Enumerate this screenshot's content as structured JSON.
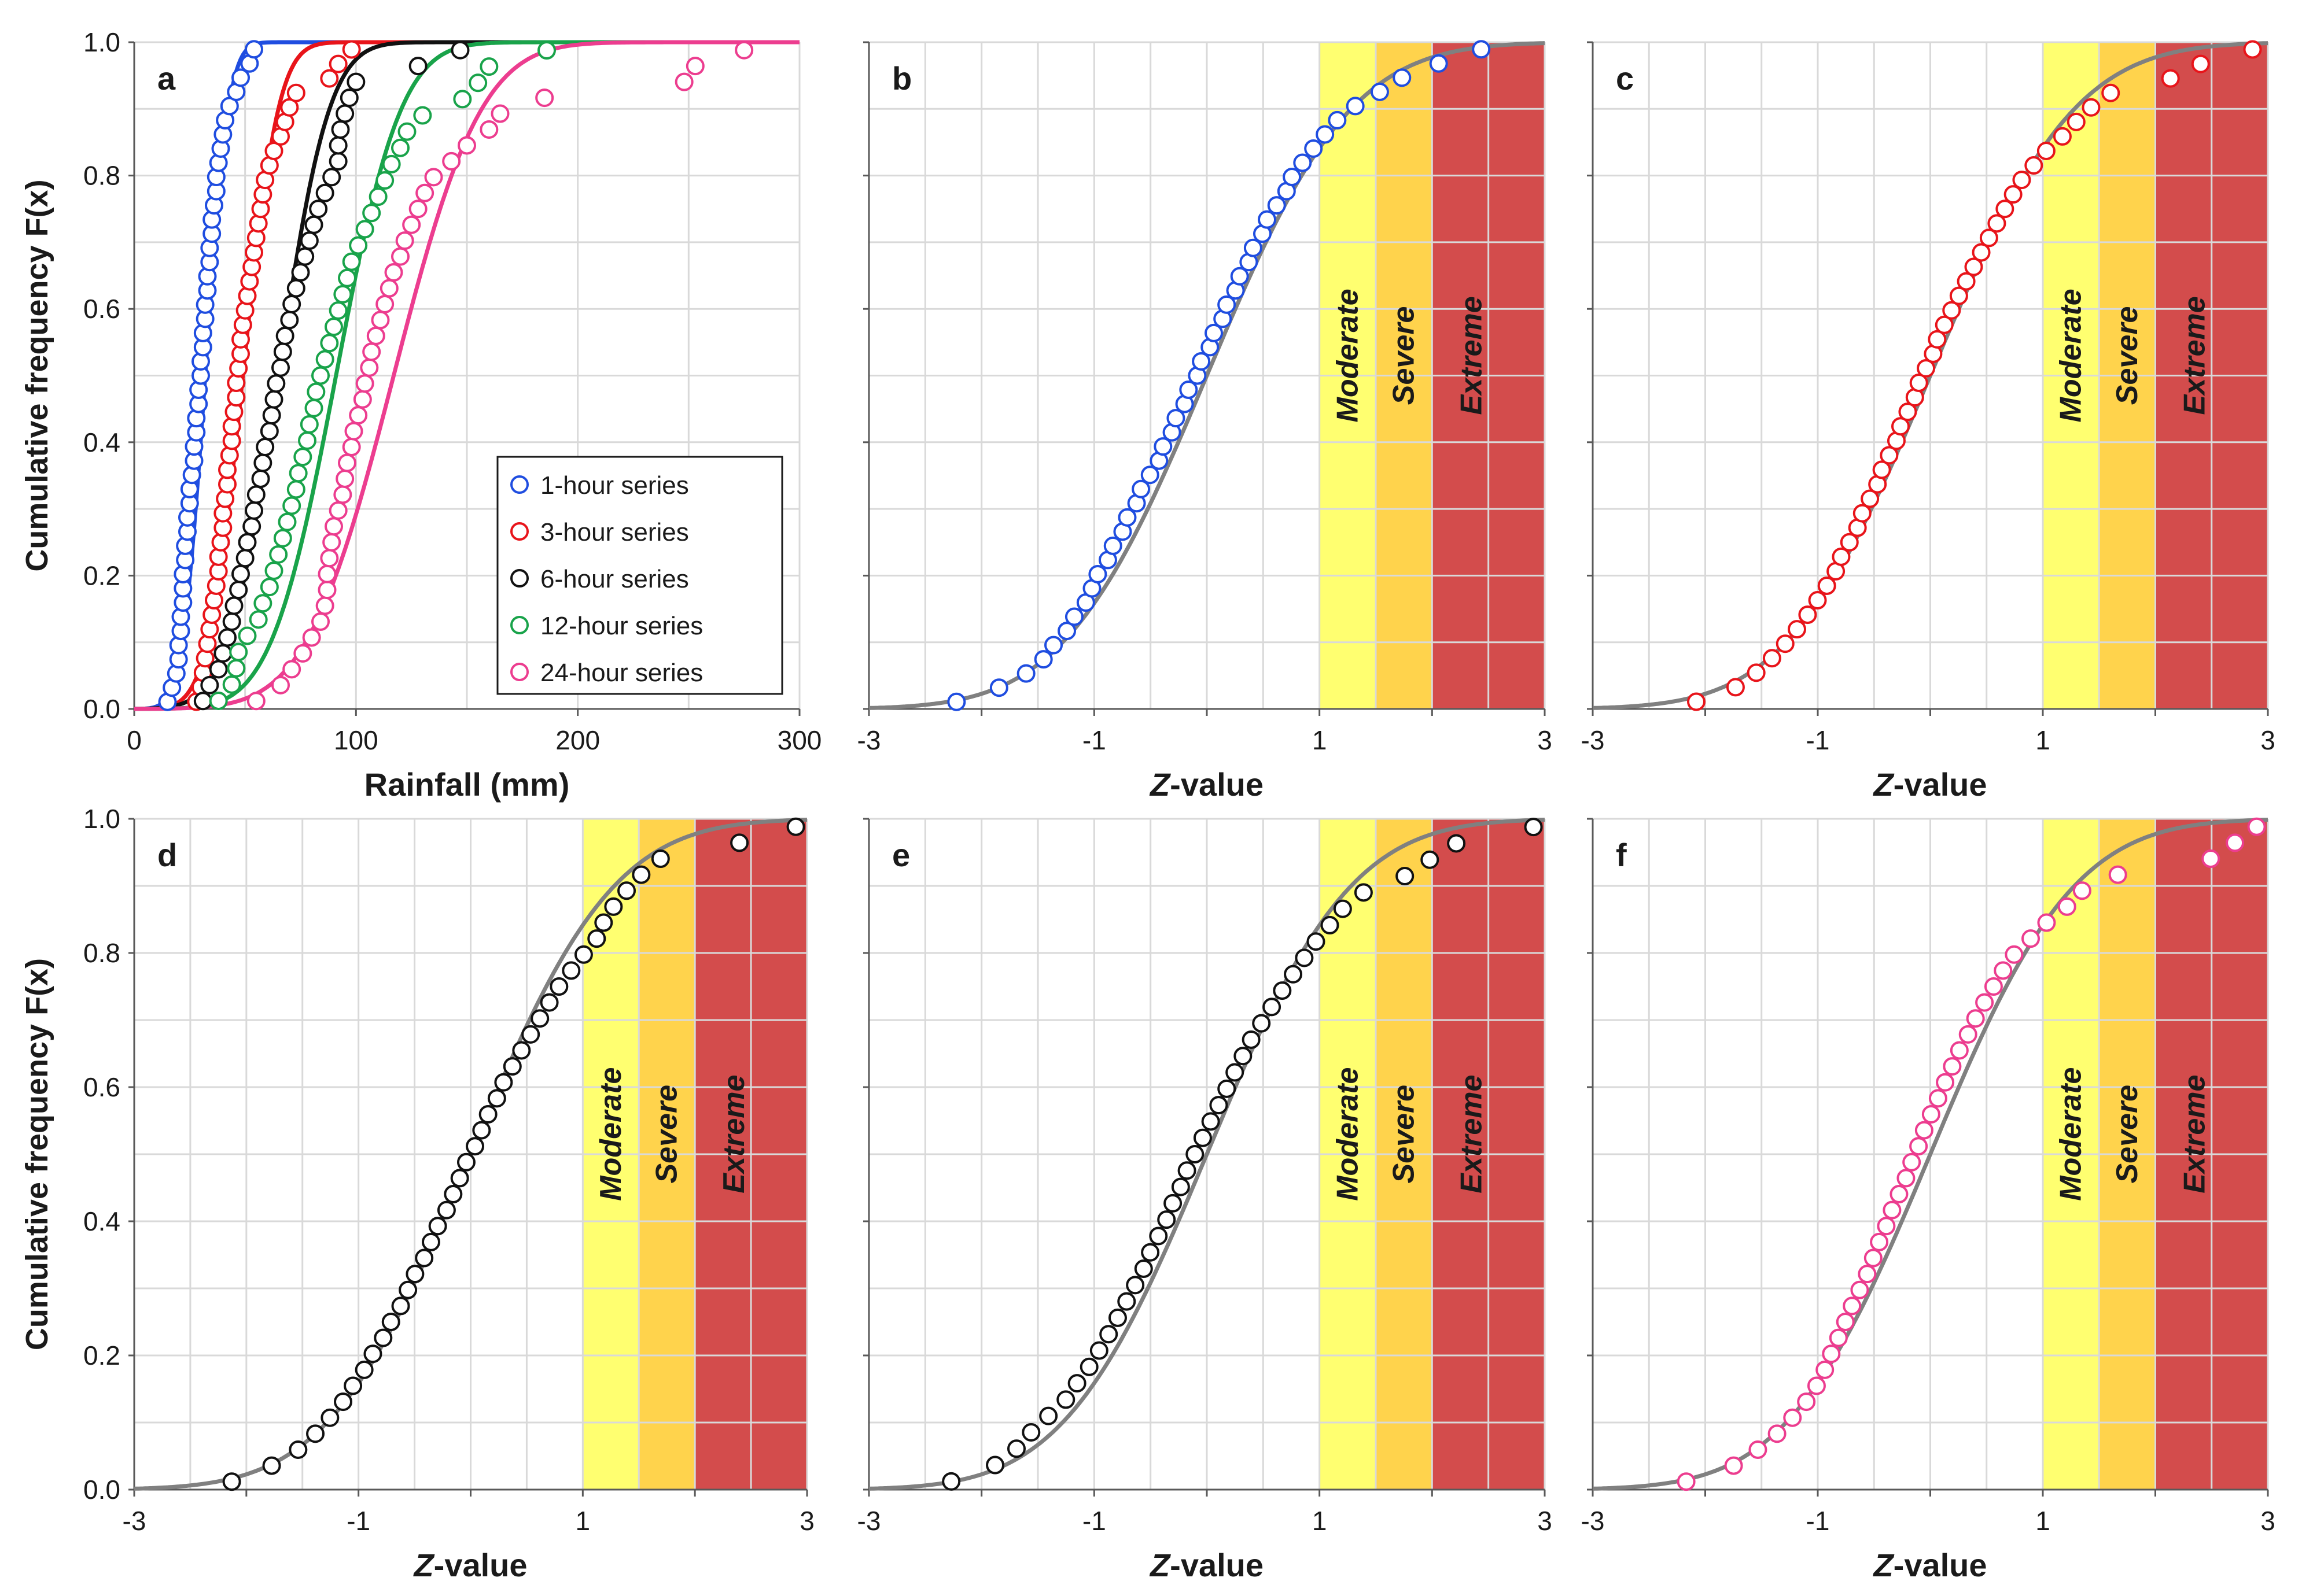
{
  "chart_data": [
    {
      "panel": "a",
      "type": "scatter",
      "xlabel": "Rainfall (mm)",
      "ylabel": "Cumulative frequency F(x)",
      "xlim": [
        0,
        300
      ],
      "ylim": [
        0.0,
        1.0
      ],
      "xticks": [
        0,
        100,
        200,
        300
      ],
      "yticks": [
        "0.0",
        "0.2",
        "0.4",
        "0.6",
        "0.8",
        "1.0"
      ],
      "legend_position": "lower-right",
      "series": [
        {
          "name": "1-hour series",
          "color": "#1f4de0",
          "mean": 32,
          "sd": 8.2,
          "x": [
            15,
            17,
            19,
            20,
            20,
            21,
            21,
            22,
            22,
            22,
            23,
            23,
            24,
            24,
            25,
            25,
            26,
            27,
            27,
            28,
            28,
            29,
            29,
            30,
            30,
            31,
            31,
            32,
            32,
            33,
            33,
            34,
            34,
            35,
            35,
            36,
            37,
            37,
            38,
            39,
            40,
            41,
            43,
            46,
            48,
            52,
            54
          ]
        },
        {
          "name": "3-hour series",
          "color": "#e8141a",
          "mean": 49,
          "sd": 12.5,
          "x": [
            28,
            30,
            31,
            32,
            33,
            34,
            35,
            36,
            37,
            38,
            38,
            39,
            40,
            40,
            41,
            42,
            42,
            43,
            44,
            44,
            45,
            46,
            46,
            47,
            48,
            48,
            49,
            50,
            51,
            52,
            53,
            54,
            55,
            56,
            57,
            58,
            59,
            61,
            63,
            66,
            68,
            70,
            73,
            88,
            92,
            98
          ]
        },
        {
          "name": "6-hour series",
          "color": "#111111",
          "mean": 65,
          "sd": 18,
          "x": [
            31,
            34,
            38,
            40,
            42,
            44,
            45,
            47,
            48,
            50,
            51,
            53,
            54,
            55,
            57,
            58,
            59,
            61,
            62,
            63,
            64,
            66,
            67,
            68,
            70,
            71,
            73,
            75,
            77,
            79,
            81,
            83,
            86,
            89,
            92,
            92,
            93,
            95,
            97,
            100,
            128,
            147
          ]
        },
        {
          "name": "12-hour series",
          "color": "#19a34a",
          "mean": 91,
          "sd": 23,
          "x": [
            38,
            44,
            46,
            47,
            51,
            56,
            58,
            61,
            63,
            65,
            67,
            69,
            71,
            73,
            74,
            76,
            78,
            79,
            81,
            82,
            84,
            86,
            88,
            90,
            92,
            94,
            96,
            98,
            101,
            104,
            107,
            110,
            113,
            116,
            120,
            123,
            130,
            148,
            155,
            160,
            186
          ]
        },
        {
          "name": "24-hour series",
          "color": "#ec3d8f",
          "mean": 117,
          "sd": 31,
          "x": [
            55,
            66,
            71,
            76,
            80,
            84,
            86,
            87,
            87,
            88,
            89,
            90,
            92,
            94,
            95,
            96,
            98,
            99,
            101,
            103,
            104,
            106,
            107,
            109,
            111,
            113,
            115,
            117,
            120,
            122,
            125,
            128,
            131,
            135,
            143,
            150,
            160,
            165,
            185,
            248,
            253,
            275
          ]
        }
      ],
      "labels": {
        "panel": "a"
      }
    },
    {
      "panel": "b",
      "type": "scatter",
      "xlabel": "Z-value",
      "xlim": [
        -3,
        3
      ],
      "ylim": [
        0.0,
        1.0
      ],
      "xticks": [
        "-3",
        "-1",
        "1",
        "3"
      ],
      "marker_color": "#1f4de0",
      "marker_fill": "none",
      "bands": [
        {
          "name": "Moderate",
          "from": 1.0,
          "to": 1.5,
          "color": "#ffff33"
        },
        {
          "name": "Severe",
          "from": 1.5,
          "to": 2.0,
          "color": "#ffc000"
        },
        {
          "name": "Extreme",
          "from": 2.0,
          "to": 3.0,
          "color": "#c00000"
        }
      ],
      "curve": "standard normal CDF",
      "labels": {
        "panel": "b",
        "moderate": "Moderate",
        "severe": "Severe",
        "extreme": "Extreme"
      }
    },
    {
      "panel": "c",
      "type": "scatter",
      "xlabel": "Z-value",
      "xlim": [
        -3,
        3
      ],
      "ylim": [
        0.0,
        1.0
      ],
      "xticks": [
        "-3",
        "-1",
        "1",
        "3"
      ],
      "marker_color": "#e8141a",
      "marker_fill": "none",
      "bands": [
        {
          "name": "Moderate",
          "from": 1.0,
          "to": 1.5,
          "color": "#ffff33"
        },
        {
          "name": "Severe",
          "from": 1.5,
          "to": 2.0,
          "color": "#ffc000"
        },
        {
          "name": "Extreme",
          "from": 2.0,
          "to": 3.0,
          "color": "#c00000"
        }
      ],
      "curve": "standard normal CDF",
      "labels": {
        "panel": "c",
        "moderate": "Moderate",
        "severe": "Severe",
        "extreme": "Extreme"
      }
    },
    {
      "panel": "d",
      "type": "scatter",
      "xlabel": "Z-value",
      "ylabel": "Cumulative frequency F(x)",
      "xlim": [
        -3,
        3
      ],
      "ylim": [
        0.0,
        1.0
      ],
      "xticks": [
        "-3",
        "-1",
        "1",
        "3"
      ],
      "yticks": [
        "0.0",
        "0.2",
        "0.4",
        "0.6",
        "0.8",
        "1.0"
      ],
      "marker_color": "#111111",
      "marker_fill": "none",
      "bands": [
        {
          "name": "Moderate",
          "from": 1.0,
          "to": 1.5,
          "color": "#ffff33"
        },
        {
          "name": "Severe",
          "from": 1.5,
          "to": 2.0,
          "color": "#ffc000"
        },
        {
          "name": "Extreme",
          "from": 2.0,
          "to": 3.0,
          "color": "#c00000"
        }
      ],
      "curve": "standard normal CDF",
      "labels": {
        "panel": "d",
        "moderate": "Moderate",
        "severe": "Severe",
        "extreme": "Extreme"
      }
    },
    {
      "panel": "e",
      "type": "scatter",
      "xlabel": "Z-value",
      "xlim": [
        -3,
        3
      ],
      "ylim": [
        0.0,
        1.0
      ],
      "xticks": [
        "-3",
        "-1",
        "1",
        "3"
      ],
      "marker_color": "#111111",
      "marker_fill": "none",
      "bands": [
        {
          "name": "Moderate",
          "from": 1.0,
          "to": 1.5,
          "color": "#ffff33"
        },
        {
          "name": "Severe",
          "from": 1.5,
          "to": 2.0,
          "color": "#ffc000"
        },
        {
          "name": "Extreme",
          "from": 2.0,
          "to": 3.0,
          "color": "#c00000"
        }
      ],
      "curve": "standard normal CDF",
      "labels": {
        "panel": "e",
        "moderate": "Moderate",
        "severe": "Severe",
        "extreme": "Extreme"
      }
    },
    {
      "panel": "f",
      "type": "scatter",
      "xlabel": "Z-value",
      "xlim": [
        -3,
        3
      ],
      "ylim": [
        0.0,
        1.0
      ],
      "xticks": [
        "-3",
        "-1",
        "1",
        "3"
      ],
      "marker_color": "#ec3d8f",
      "marker_fill": "none",
      "bands": [
        {
          "name": "Moderate",
          "from": 1.0,
          "to": 1.5,
          "color": "#ffff33"
        },
        {
          "name": "Severe",
          "from": 1.5,
          "to": 2.0,
          "color": "#ffc000"
        },
        {
          "name": "Extreme",
          "from": 2.0,
          "to": 3.0,
          "color": "#c00000"
        }
      ],
      "curve": "standard normal CDF",
      "labels": {
        "panel": "f",
        "moderate": "Moderate",
        "severe": "Severe",
        "extreme": "Extreme"
      }
    }
  ],
  "colors": {
    "curve": "#808080",
    "grid": "#d9d9d9",
    "axis": "#595959",
    "band_opacity": "0.7"
  }
}
